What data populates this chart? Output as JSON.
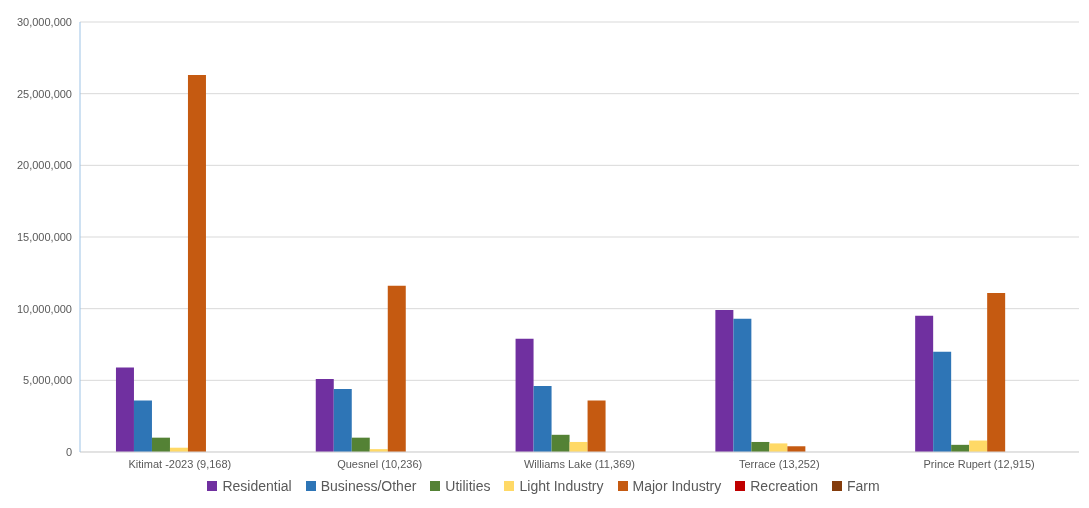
{
  "chart_data": {
    "type": "bar",
    "categories": [
      "Kitimat -2023 (9,168)",
      "Quesnel (10,236)",
      "Williams Lake (11,369)",
      "Terrace (13,252)",
      "Prince Rupert (12,915)"
    ],
    "series": [
      {
        "name": "Residential",
        "color": "#7030a0",
        "values": [
          5900000,
          5100000,
          7900000,
          9900000,
          9500000
        ]
      },
      {
        "name": "Business/Other",
        "color": "#2e75b6",
        "values": [
          3600000,
          4400000,
          4600000,
          9300000,
          7000000
        ]
      },
      {
        "name": "Utilities",
        "color": "#548235",
        "values": [
          1000000,
          1000000,
          1200000,
          700000,
          500000
        ]
      },
      {
        "name": "Light Industry",
        "color": "#ffd966",
        "values": [
          300000,
          200000,
          700000,
          600000,
          800000
        ]
      },
      {
        "name": "Major Industry",
        "color": "#c55a11",
        "values": [
          26300000,
          11600000,
          3600000,
          400000,
          11100000
        ]
      },
      {
        "name": "Recreation",
        "color": "#c00000",
        "values": [
          0,
          0,
          0,
          0,
          0
        ]
      },
      {
        "name": "Farm",
        "color": "#843c0c",
        "values": [
          0,
          0,
          0,
          0,
          0
        ]
      }
    ],
    "ylim": [
      0,
      30000000
    ],
    "yticks": [
      0,
      {
        "value": 5000000,
        "label": "5,000,000"
      },
      {
        "value": 10000000,
        "label": "10,000,000"
      },
      {
        "value": 15000000,
        "label": "15,000,000"
      },
      {
        "value": 20000000,
        "label": "20,000,000"
      },
      {
        "value": 25000000,
        "label": "25,000,000"
      },
      {
        "value": 30000000,
        "label": "30,000,000"
      }
    ],
    "grid": "y",
    "legend": "bottom"
  }
}
